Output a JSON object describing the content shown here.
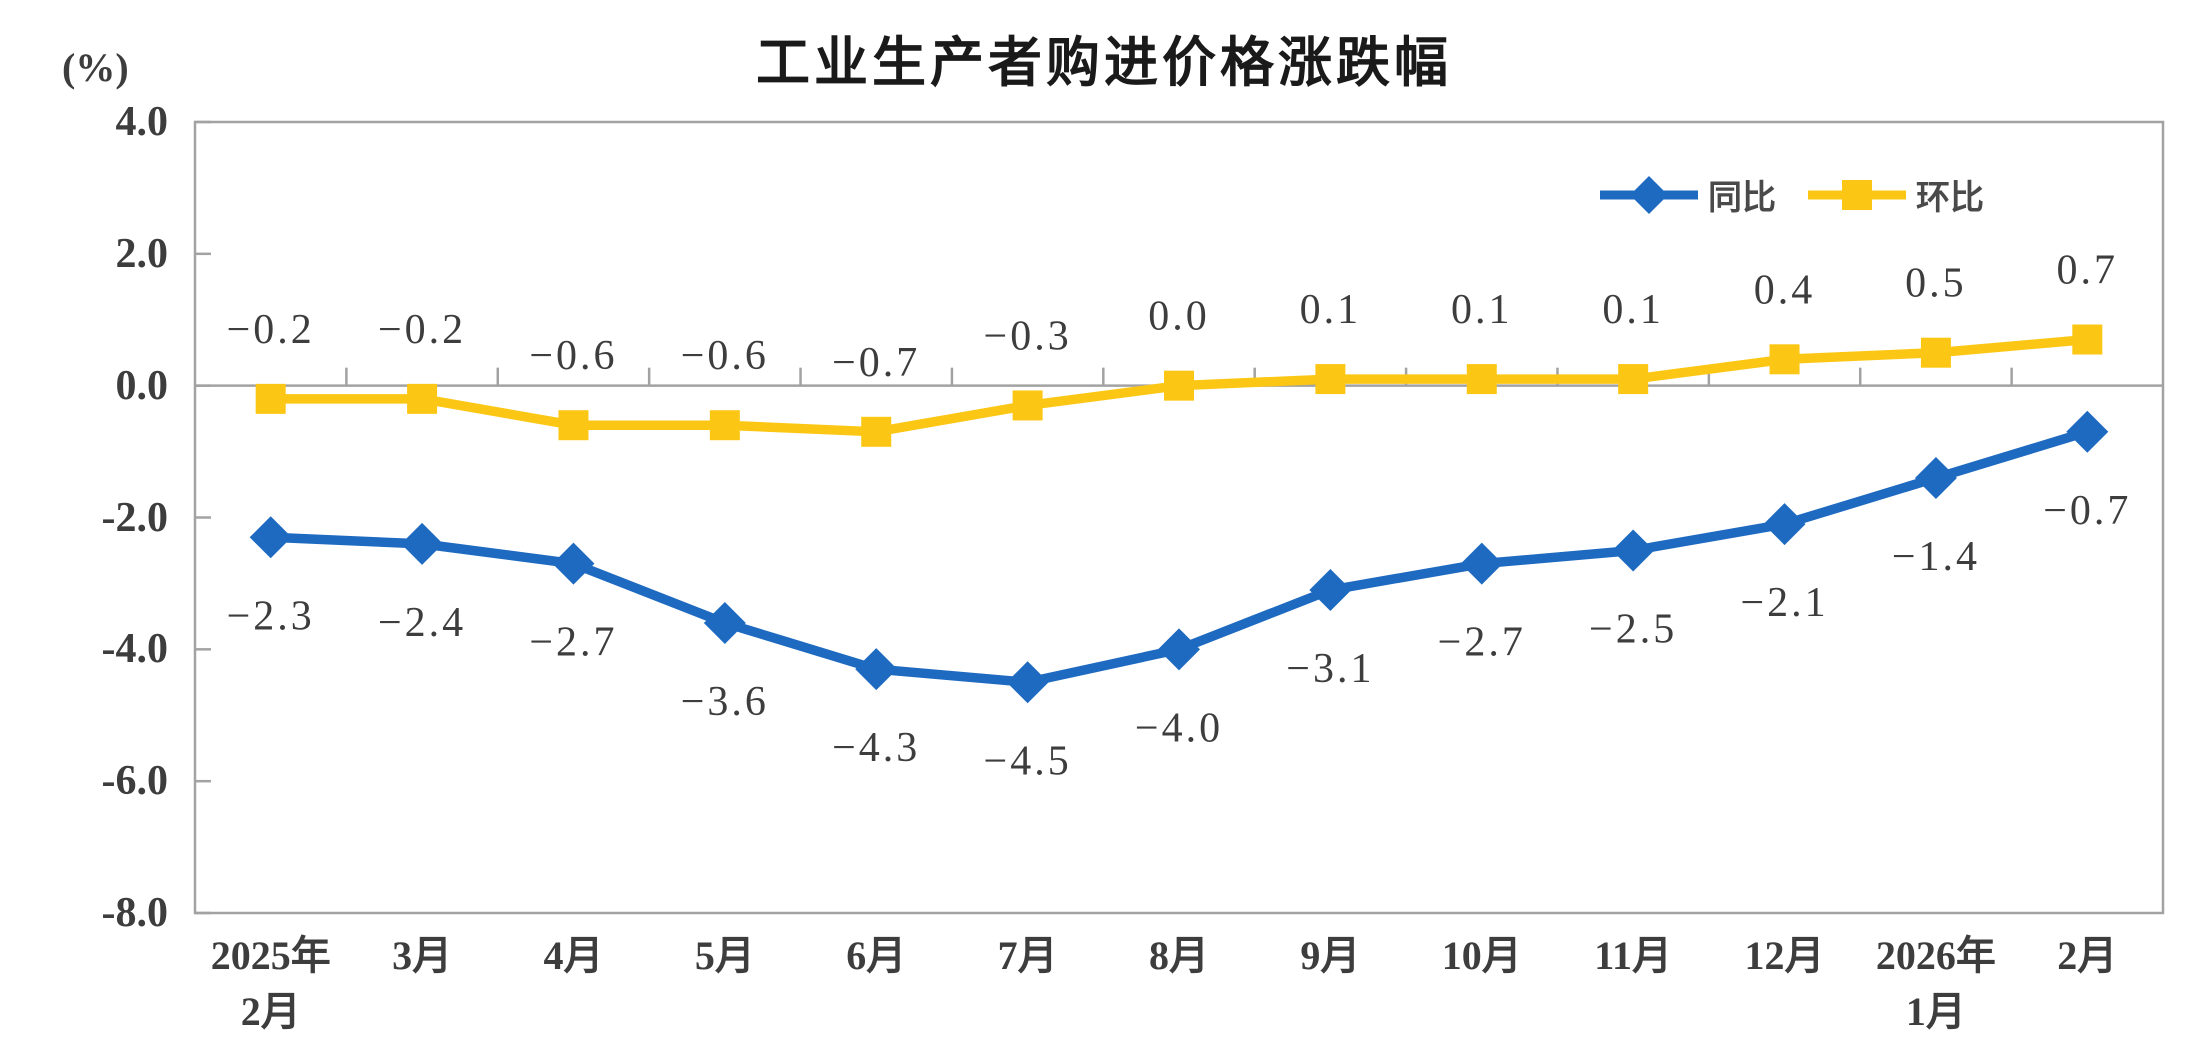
{
  "page": {
    "title": "工业生产者购进价格涨跌幅",
    "unit_label": "(%)"
  },
  "legend": {
    "position": "top-right",
    "items": [
      {
        "label": "同比",
        "color": "#1e6ac1",
        "marker": "diamond"
      },
      {
        "label": "环比",
        "color": "#fcc714",
        "marker": "square"
      }
    ]
  },
  "chart_data": {
    "type": "line",
    "title": "工业生产者购进价格涨跌幅",
    "ylabel": "(%)",
    "xlabel": "",
    "ylim": [
      -8.0,
      4.0
    ],
    "yticks": [
      4.0,
      2.0,
      0.0,
      -2.0,
      -4.0,
      -6.0,
      -8.0
    ],
    "grid": "zero-line-only",
    "legend_position": "top-right",
    "categories": [
      [
        "2025年",
        "2月"
      ],
      [
        "3月"
      ],
      [
        "4月"
      ],
      [
        "5月"
      ],
      [
        "6月"
      ],
      [
        "7月"
      ],
      [
        "8月"
      ],
      [
        "9月"
      ],
      [
        "10月"
      ],
      [
        "11月"
      ],
      [
        "12月"
      ],
      [
        "2026年",
        "1月"
      ],
      [
        "2月"
      ]
    ],
    "series": [
      {
        "name": "同比",
        "marker": "diamond",
        "color": "#1e6ac1",
        "label_side": "below",
        "values": [
          -2.3,
          -2.4,
          -2.7,
          -3.6,
          -4.3,
          -4.5,
          -4.0,
          -3.1,
          -2.7,
          -2.5,
          -2.1,
          -1.4,
          -0.7
        ]
      },
      {
        "name": "环比",
        "marker": "square",
        "color": "#fcc714",
        "label_side": "above",
        "values": [
          -0.2,
          -0.2,
          -0.6,
          -0.6,
          -0.7,
          -0.3,
          0.0,
          0.1,
          0.1,
          0.1,
          0.4,
          0.5,
          0.7
        ]
      }
    ],
    "axis_color": "#a2a2a2",
    "label_color": "#3d3d3d"
  }
}
